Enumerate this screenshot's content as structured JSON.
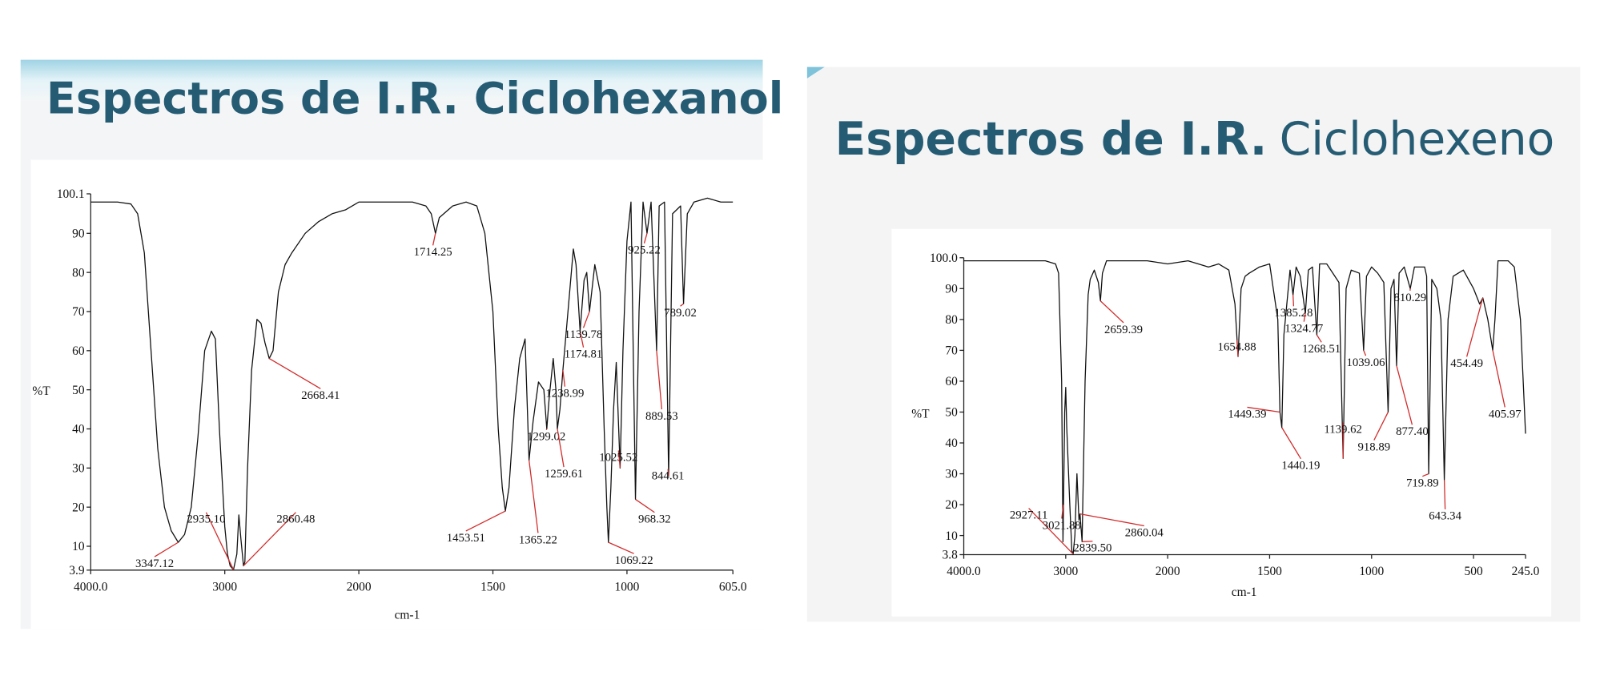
{
  "chart_data": [
    {
      "type": "line",
      "title": "Espectros de I.R. Ciclohexanol",
      "x_label": "cm-1",
      "y_label": "%T",
      "xlim": [
        4000,
        605
      ],
      "xbreak": 2000,
      "xbreak_factor": 2,
      "xticks": [
        {
          "value": 4000,
          "label": "4000.0"
        },
        3000,
        2000,
        1500,
        1000,
        {
          "value": 605,
          "label": "605.0"
        }
      ],
      "ylim": [
        3.9,
        100.1
      ],
      "yticks": [
        {
          "value": 3.9,
          "label": "3.9"
        },
        10,
        20,
        30,
        40,
        50,
        60,
        70,
        80,
        90,
        {
          "value": 100.1,
          "label": "100.1"
        }
      ],
      "peak_color": "#d22b2b",
      "series": [
        {
          "color": "#111111",
          "x": [
            4000,
            3800,
            3700,
            3650,
            3600,
            3550,
            3500,
            3450,
            3400,
            3347.12,
            3300,
            3250,
            3200,
            3150,
            3100,
            3070,
            3040,
            3000,
            2980,
            2960,
            2935.1,
            2910,
            2895,
            2880,
            2860.48,
            2850,
            2830,
            2800,
            2760,
            2730,
            2700,
            2668.41,
            2640,
            2600,
            2550,
            2500,
            2400,
            2300,
            2200,
            2100,
            2000,
            1900,
            1800,
            1750,
            1730,
            1714.25,
            1700,
            1650,
            1600,
            1560,
            1530,
            1500,
            1480,
            1465,
            1453.51,
            1440,
            1420,
            1400,
            1380,
            1365.22,
            1350,
            1330,
            1310,
            1299.02,
            1290,
            1275,
            1265,
            1259.61,
            1250,
            1238.99,
            1220,
            1200,
            1190,
            1174.81,
            1160,
            1150,
            1139.78,
            1120,
            1100,
            1085,
            1075,
            1069.22,
            1060,
            1050,
            1040,
            1025.52,
            1015,
            1000,
            985,
            968.32,
            955,
            940,
            925.22,
            910,
            889.53,
            880,
            860,
            844.61,
            830,
            800,
            789.02,
            775,
            750,
            700,
            650,
            605
          ],
          "values": [
            98,
            98,
            97.5,
            95,
            85,
            60,
            35,
            20,
            14,
            11,
            13,
            20,
            38,
            60,
            65,
            63,
            40,
            15,
            8,
            5,
            4,
            8,
            18,
            12,
            5,
            6,
            30,
            55,
            68,
            67,
            62,
            58,
            60,
            75,
            82,
            85,
            90,
            93,
            95,
            96,
            98,
            98,
            98,
            97,
            95,
            90,
            94,
            97,
            98,
            97,
            90,
            70,
            40,
            25,
            19,
            25,
            45,
            58,
            63,
            32,
            42,
            52,
            50,
            40,
            48,
            58,
            50,
            40,
            45,
            55,
            70,
            86,
            82,
            65,
            78,
            80,
            70,
            82,
            75,
            40,
            20,
            11,
            25,
            45,
            57,
            30,
            60,
            88,
            98,
            22,
            70,
            98,
            90,
            98,
            60,
            97,
            98,
            28,
            95,
            97,
            72,
            95,
            98,
            99,
            98,
            98
          ]
        }
      ],
      "peaks": [
        {
          "label": "3347.12",
          "x": 3347.12,
          "y": 11
        },
        {
          "label": "2935.10",
          "x": 2935.1,
          "y": 4
        },
        {
          "label": "2860.48",
          "x": 2860.48,
          "y": 5
        },
        {
          "label": "2668.41",
          "x": 2668.41,
          "y": 58
        },
        {
          "label": "1714.25",
          "x": 1714.25,
          "y": 90
        },
        {
          "label": "1453.51",
          "x": 1453.51,
          "y": 19
        },
        {
          "label": "1365.22",
          "x": 1365.22,
          "y": 32
        },
        {
          "label": "1299.02",
          "x": 1299.02,
          "y": 40
        },
        {
          "label": "1259.61",
          "x": 1259.61,
          "y": 40
        },
        {
          "label": "1238.99",
          "x": 1238.99,
          "y": 55
        },
        {
          "label": "1174.81",
          "x": 1174.81,
          "y": 65
        },
        {
          "label": "1139.78",
          "x": 1139.78,
          "y": 70
        },
        {
          "label": "1069.22",
          "x": 1069.22,
          "y": 11
        },
        {
          "label": "1025.52",
          "x": 1025.52,
          "y": 30
        },
        {
          "label": "968.32",
          "x": 968.32,
          "y": 22
        },
        {
          "label": "925.22",
          "x": 925.22,
          "y": 90
        },
        {
          "label": "889.53",
          "x": 889.53,
          "y": 60
        },
        {
          "label": "844.61",
          "x": 844.61,
          "y": 28
        },
        {
          "label": "789.02",
          "x": 789.02,
          "y": 72
        }
      ]
    },
    {
      "type": "line",
      "title_bold": "Espectros de I.R.",
      "title": "Ciclohexeno",
      "x_label": "cm-1",
      "y_label": "%T",
      "xlim": [
        4000,
        245
      ],
      "xbreak": 2000,
      "xbreak_factor": 2,
      "xticks": [
        {
          "value": 4000,
          "label": "4000.0"
        },
        3000,
        2000,
        1500,
        1000,
        500,
        {
          "value": 245,
          "label": "245.0"
        }
      ],
      "ylim": [
        3.8,
        100.0
      ],
      "yticks": [
        {
          "value": 3.8,
          "label": "3.8"
        },
        10,
        20,
        30,
        40,
        50,
        60,
        70,
        80,
        90,
        {
          "value": 100.0,
          "label": "100.0"
        }
      ],
      "peak_color": "#d22b2b",
      "series": [
        {
          "color": "#111111",
          "x": [
            4000,
            3500,
            3200,
            3100,
            3070,
            3040,
            3027,
            3021.88,
            3010,
            3000,
            2990,
            2960,
            2940,
            2927.11,
            2910,
            2890,
            2870,
            2860.04,
            2839.5,
            2830,
            2810,
            2780,
            2760,
            2720,
            2680,
            2659.39,
            2640,
            2600,
            2400,
            2200,
            2000,
            1900,
            1800,
            1750,
            1700,
            1670,
            1654.88,
            1640,
            1620,
            1600,
            1550,
            1500,
            1460,
            1449.39,
            1440.19,
            1430,
            1400,
            1385.28,
            1370,
            1350,
            1324.77,
            1310,
            1290,
            1268.51,
            1255,
            1220,
            1160,
            1139.62,
            1125,
            1100,
            1060,
            1039.06,
            1025,
            1000,
            970,
            940,
            918.89,
            905,
            890,
            877.4,
            865,
            840,
            810.29,
            790,
            740,
            730,
            719.89,
            705,
            680,
            660,
            643.34,
            625,
            600,
            550,
            500,
            470,
            454.49,
            430,
            405.97,
            395,
            380,
            330,
            300,
            270,
            245
          ],
          "values": [
            99,
            99,
            99,
            98,
            95,
            60,
            8,
            20,
            50,
            58,
            45,
            20,
            5,
            4,
            10,
            30,
            15,
            17,
            8,
            25,
            60,
            88,
            93,
            96,
            92,
            86,
            95,
            99,
            99,
            99,
            98,
            99,
            97,
            98,
            96,
            85,
            68,
            90,
            94,
            95,
            97,
            98,
            80,
            50,
            45,
            75,
            96,
            88,
            97,
            94,
            82,
            96,
            97,
            75,
            98,
            98,
            92,
            35,
            90,
            96,
            95,
            70,
            94,
            97,
            95,
            92,
            50,
            90,
            93,
            65,
            95,
            97,
            90,
            97,
            97,
            94,
            30,
            93,
            90,
            80,
            28,
            80,
            94,
            96,
            90,
            85,
            87,
            80,
            70,
            80,
            99,
            99,
            97,
            80,
            43
          ]
        }
      ],
      "peaks": [
        {
          "label": "2927.11",
          "x": 2927.11,
          "y": 4
        },
        {
          "label": "3021.88",
          "x": 3021.88,
          "y": 20
        },
        {
          "label": "2839.50",
          "x": 2839.5,
          "y": 8
        },
        {
          "label": "2860.04",
          "x": 2860.04,
          "y": 17
        },
        {
          "label": "2659.39",
          "x": 2659.39,
          "y": 86
        },
        {
          "label": "1654.88",
          "x": 1654.88,
          "y": 68
        },
        {
          "label": "1449.39",
          "x": 1449.39,
          "y": 50
        },
        {
          "label": "1440.19",
          "x": 1440.19,
          "y": 45
        },
        {
          "label": "1385.28",
          "x": 1385.28,
          "y": 88
        },
        {
          "label": "1324.77",
          "x": 1324.77,
          "y": 82
        },
        {
          "label": "1268.51",
          "x": 1268.51,
          "y": 75
        },
        {
          "label": "1139.62",
          "x": 1139.62,
          "y": 35
        },
        {
          "label": "1039.06",
          "x": 1039.06,
          "y": 70
        },
        {
          "label": "918.89",
          "x": 918.89,
          "y": 50
        },
        {
          "label": "877.40",
          "x": 877.4,
          "y": 65
        },
        {
          "label": "810.29",
          "x": 810.29,
          "y": 90
        },
        {
          "label": "719.89",
          "x": 719.89,
          "y": 30
        },
        {
          "label": "643.34",
          "x": 643.34,
          "y": 28
        },
        {
          "label": "454.49",
          "x": 454.49,
          "y": 87
        },
        {
          "label": "405.97",
          "x": 405.97,
          "y": 70
        }
      ]
    }
  ]
}
